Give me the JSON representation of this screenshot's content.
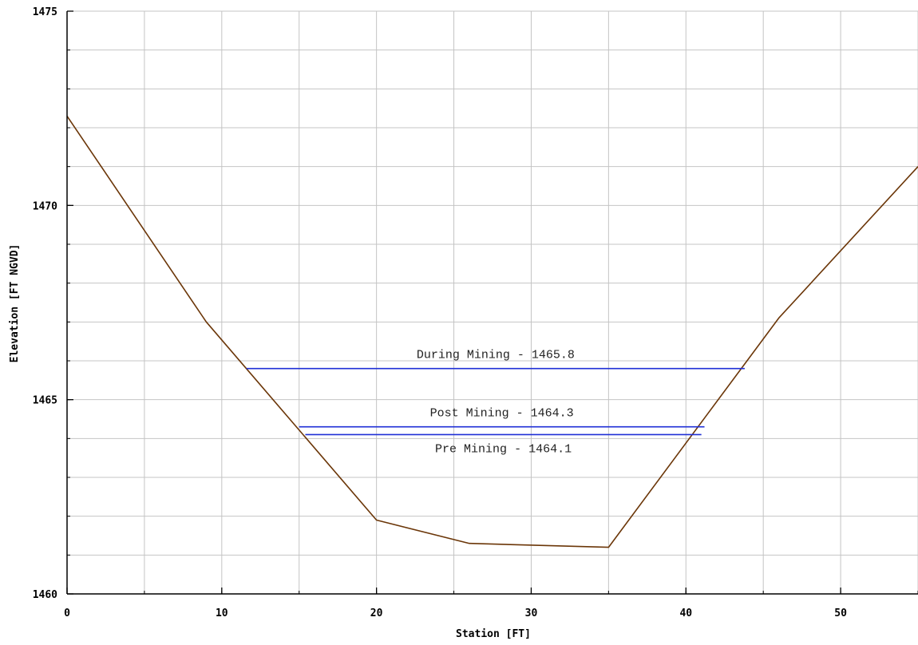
{
  "chart_data": {
    "type": "line",
    "xlabel": "Station  [FT]",
    "ylabel": "Elevation  [FT NGVD]",
    "xlim": [
      0,
      55
    ],
    "ylim": [
      1460,
      1475
    ],
    "x_ticks": [
      0,
      10,
      20,
      30,
      40,
      50
    ],
    "y_ticks": [
      1460,
      1465,
      1470,
      1475
    ],
    "x_minor_step": 5,
    "y_minor_step": 1,
    "grid": true,
    "colors": {
      "ground": "#6b3608",
      "water": "#1f2fd6",
      "grid": "#c4c4c4",
      "axis": "#000000"
    },
    "series": [
      {
        "kind": "ground",
        "x": [
          0,
          9,
          20,
          26,
          35,
          46,
          55
        ],
        "y": [
          1472.3,
          1467.0,
          1461.9,
          1461.3,
          1461.2,
          1467.1,
          1471.0
        ]
      },
      {
        "kind": "water",
        "x": [
          11.6,
          43.8
        ],
        "y": [
          1465.8,
          1465.8
        ],
        "label": "During Mining - 1465.8",
        "label_x": 27.7,
        "label_side": "above"
      },
      {
        "kind": "water",
        "x": [
          15.0,
          41.2
        ],
        "y": [
          1464.3,
          1464.3
        ],
        "label": "Post Mining - 1464.3",
        "label_x": 28.1,
        "label_side": "above"
      },
      {
        "kind": "water",
        "x": [
          15.4,
          41.0
        ],
        "y": [
          1464.1,
          1464.1
        ],
        "label": "Pre Mining - 1464.1",
        "label_x": 28.2,
        "label_side": "below"
      }
    ]
  }
}
